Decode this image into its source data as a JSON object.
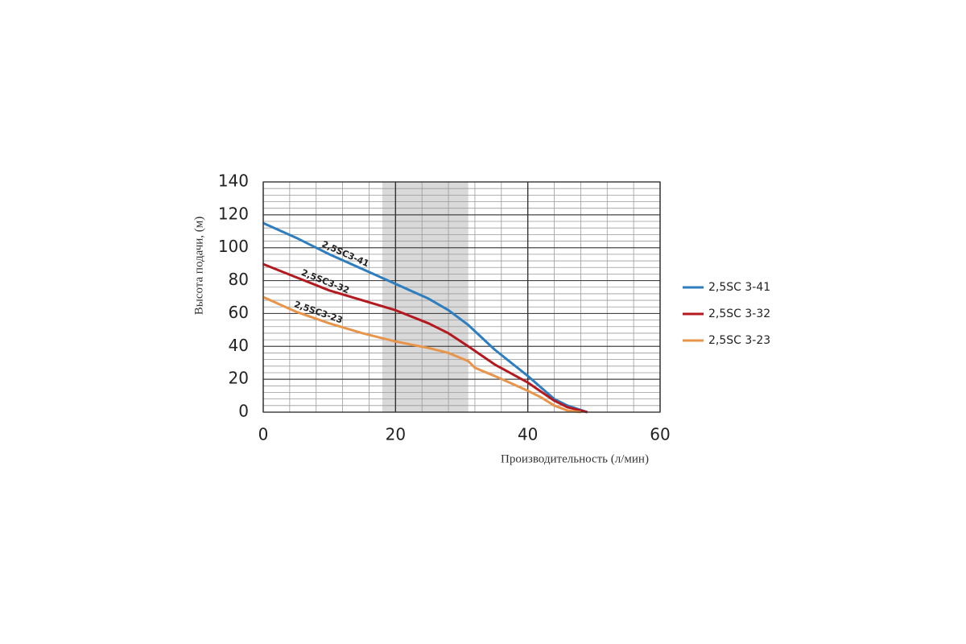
{
  "chart_data": {
    "type": "line",
    "x_label": "Производительность (л/мин)",
    "y_label": "Высота подачи, (м)",
    "xlim": [
      0,
      60
    ],
    "xticks": [
      0,
      20,
      40,
      60
    ],
    "ylim": [
      0,
      140
    ],
    "yticks": [
      0,
      20,
      40,
      60,
      80,
      100,
      120,
      140
    ],
    "x_minor_ticks": [
      4,
      8,
      12,
      16,
      24,
      28,
      32,
      36,
      44,
      48,
      52,
      56
    ],
    "y_minor_ticks": [
      4,
      8,
      12,
      16,
      24,
      28,
      32,
      36,
      44,
      48,
      52,
      56,
      64,
      68,
      72,
      76,
      84,
      88,
      92,
      96,
      104,
      108,
      112,
      116,
      124,
      128,
      132,
      136
    ],
    "highlight_range": [
      18,
      31
    ],
    "highlight_color": "#d9d9d9",
    "grid": true,
    "legend": "right",
    "annotations": [
      "2,5SC3-41",
      "2,5SC3-32",
      "2,5SC3-23"
    ],
    "series": [
      {
        "name": "2,5SC 3-41",
        "color": "#2e7ebf",
        "x": [
          0,
          5,
          10,
          15,
          20,
          25,
          28,
          31,
          35,
          40,
          42,
          44,
          46,
          49
        ],
        "values": [
          115,
          106,
          96,
          87,
          78,
          69,
          62,
          53,
          38,
          22,
          15,
          8,
          4,
          0
        ]
      },
      {
        "name": "2,5SC 3-32",
        "color": "#b3191f",
        "x": [
          0,
          5,
          10,
          15,
          20,
          25,
          28,
          31,
          35,
          40,
          44,
          46,
          49
        ],
        "values": [
          90,
          82,
          74,
          68,
          62,
          54,
          48,
          40,
          29,
          18,
          7,
          3,
          0
        ]
      },
      {
        "name": "2,5SC 3-23",
        "color": "#e8944a",
        "x": [
          0,
          5,
          10,
          15,
          20,
          25,
          28,
          31,
          32,
          35,
          40,
          42,
          44,
          46,
          48
        ],
        "values": [
          70,
          61,
          54,
          48,
          43,
          39,
          36,
          31,
          27,
          22,
          13,
          9,
          4,
          1,
          0
        ]
      }
    ]
  }
}
